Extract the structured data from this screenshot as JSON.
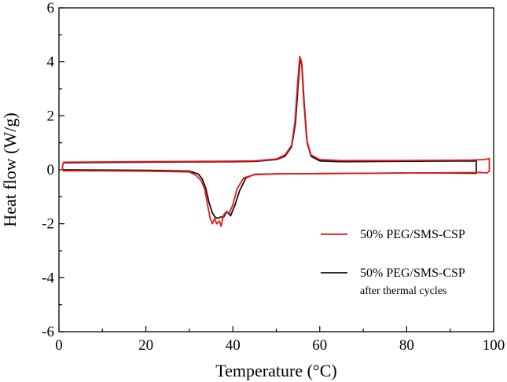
{
  "chart_data": {
    "type": "line",
    "title": "",
    "xlabel": "Temperature (°C)",
    "ylabel": "Heat flow (W/g)",
    "xlim": [
      0,
      100
    ],
    "ylim": [
      -6,
      6
    ],
    "xticks": [
      0,
      20,
      40,
      60,
      80,
      100
    ],
    "xtick_labels": [
      "0",
      "20",
      "40",
      "60",
      "80",
      "100"
    ],
    "yticks": [
      -6,
      -4,
      -2,
      0,
      2,
      4,
      6
    ],
    "ytick_labels": [
      "-6",
      "-4",
      "-2",
      "0",
      "2",
      "4",
      "6"
    ],
    "grid": false,
    "legend_position": "lower-right",
    "series": [
      {
        "name": "50% PEG/SMS-CSP",
        "sublabel": "",
        "color": "#e8181c",
        "closed_loop": true,
        "points": [
          [
            1,
            0.28
          ],
          [
            10,
            0.29
          ],
          [
            20,
            0.3
          ],
          [
            30,
            0.31
          ],
          [
            40,
            0.32
          ],
          [
            45,
            0.33
          ],
          [
            50,
            0.4
          ],
          [
            52,
            0.55
          ],
          [
            53.5,
            0.9
          ],
          [
            54.3,
            1.8
          ],
          [
            54.9,
            3.2
          ],
          [
            55.4,
            4.2
          ],
          [
            55.8,
            4.0
          ],
          [
            56.3,
            2.6
          ],
          [
            57,
            1.1
          ],
          [
            58,
            0.55
          ],
          [
            60,
            0.38
          ],
          [
            65,
            0.34
          ],
          [
            75,
            0.34
          ],
          [
            85,
            0.35
          ],
          [
            95,
            0.36
          ],
          [
            98,
            0.38
          ],
          [
            99,
            0.42
          ],
          [
            99,
            -0.05
          ],
          [
            98.5,
            -0.12
          ],
          [
            97,
            -0.1
          ],
          [
            90,
            -0.11
          ],
          [
            80,
            -0.12
          ],
          [
            70,
            -0.13
          ],
          [
            60,
            -0.14
          ],
          [
            50,
            -0.15
          ],
          [
            45,
            -0.18
          ],
          [
            42.5,
            -0.3
          ],
          [
            41,
            -0.7
          ],
          [
            40,
            -1.3
          ],
          [
            39.2,
            -1.6
          ],
          [
            38.5,
            -1.55
          ],
          [
            37.8,
            -1.7
          ],
          [
            37.3,
            -2.1
          ],
          [
            36.9,
            -1.9
          ],
          [
            36.3,
            -2.0
          ],
          [
            35.8,
            -1.8
          ],
          [
            35.3,
            -2.0
          ],
          [
            34.8,
            -1.8
          ],
          [
            34.2,
            -1.3
          ],
          [
            33.5,
            -0.7
          ],
          [
            32.7,
            -0.4
          ],
          [
            31.5,
            -0.2
          ],
          [
            30,
            -0.08
          ],
          [
            20,
            -0.05
          ],
          [
            10,
            -0.04
          ],
          [
            1,
            -0.04
          ],
          [
            0.8,
            0.1
          ],
          [
            1,
            0.28
          ]
        ]
      },
      {
        "name": "50% PEG/SMS-CSP",
        "sublabel": "after thermal cycles",
        "color": "#111111",
        "closed_loop": false,
        "points": [
          [
            1,
            0.26
          ],
          [
            10,
            0.27
          ],
          [
            20,
            0.28
          ],
          [
            30,
            0.29
          ],
          [
            40,
            0.3
          ],
          [
            45,
            0.31
          ],
          [
            50,
            0.38
          ],
          [
            52,
            0.5
          ],
          [
            53.5,
            0.85
          ],
          [
            54.4,
            1.7
          ],
          [
            55,
            3.1
          ],
          [
            55.5,
            4.1
          ],
          [
            55.9,
            3.9
          ],
          [
            56.4,
            2.5
          ],
          [
            57.1,
            1.0
          ],
          [
            58,
            0.5
          ],
          [
            60,
            0.33
          ],
          [
            65,
            0.3
          ],
          [
            75,
            0.31
          ],
          [
            85,
            0.32
          ],
          [
            96,
            0.33
          ],
          [
            96,
            -0.13
          ],
          [
            90,
            -0.12
          ],
          [
            80,
            -0.12
          ],
          [
            70,
            -0.13
          ],
          [
            60,
            -0.14
          ],
          [
            50,
            -0.15
          ],
          [
            45,
            -0.17
          ],
          [
            43,
            -0.3
          ],
          [
            41.5,
            -0.8
          ],
          [
            40.5,
            -1.3
          ],
          [
            39.5,
            -1.7
          ],
          [
            38.6,
            -1.55
          ],
          [
            37.9,
            -1.75
          ],
          [
            37.2,
            -1.75
          ],
          [
            36.5,
            -1.8
          ],
          [
            35.9,
            -1.75
          ],
          [
            35.3,
            -1.6
          ],
          [
            34.5,
            -1.2
          ],
          [
            33.8,
            -0.7
          ],
          [
            33,
            -0.35
          ],
          [
            32,
            -0.15
          ],
          [
            30,
            -0.05
          ],
          [
            20,
            -0.02
          ],
          [
            10,
            -0.01
          ],
          [
            1,
            0.0
          ]
        ]
      }
    ]
  }
}
